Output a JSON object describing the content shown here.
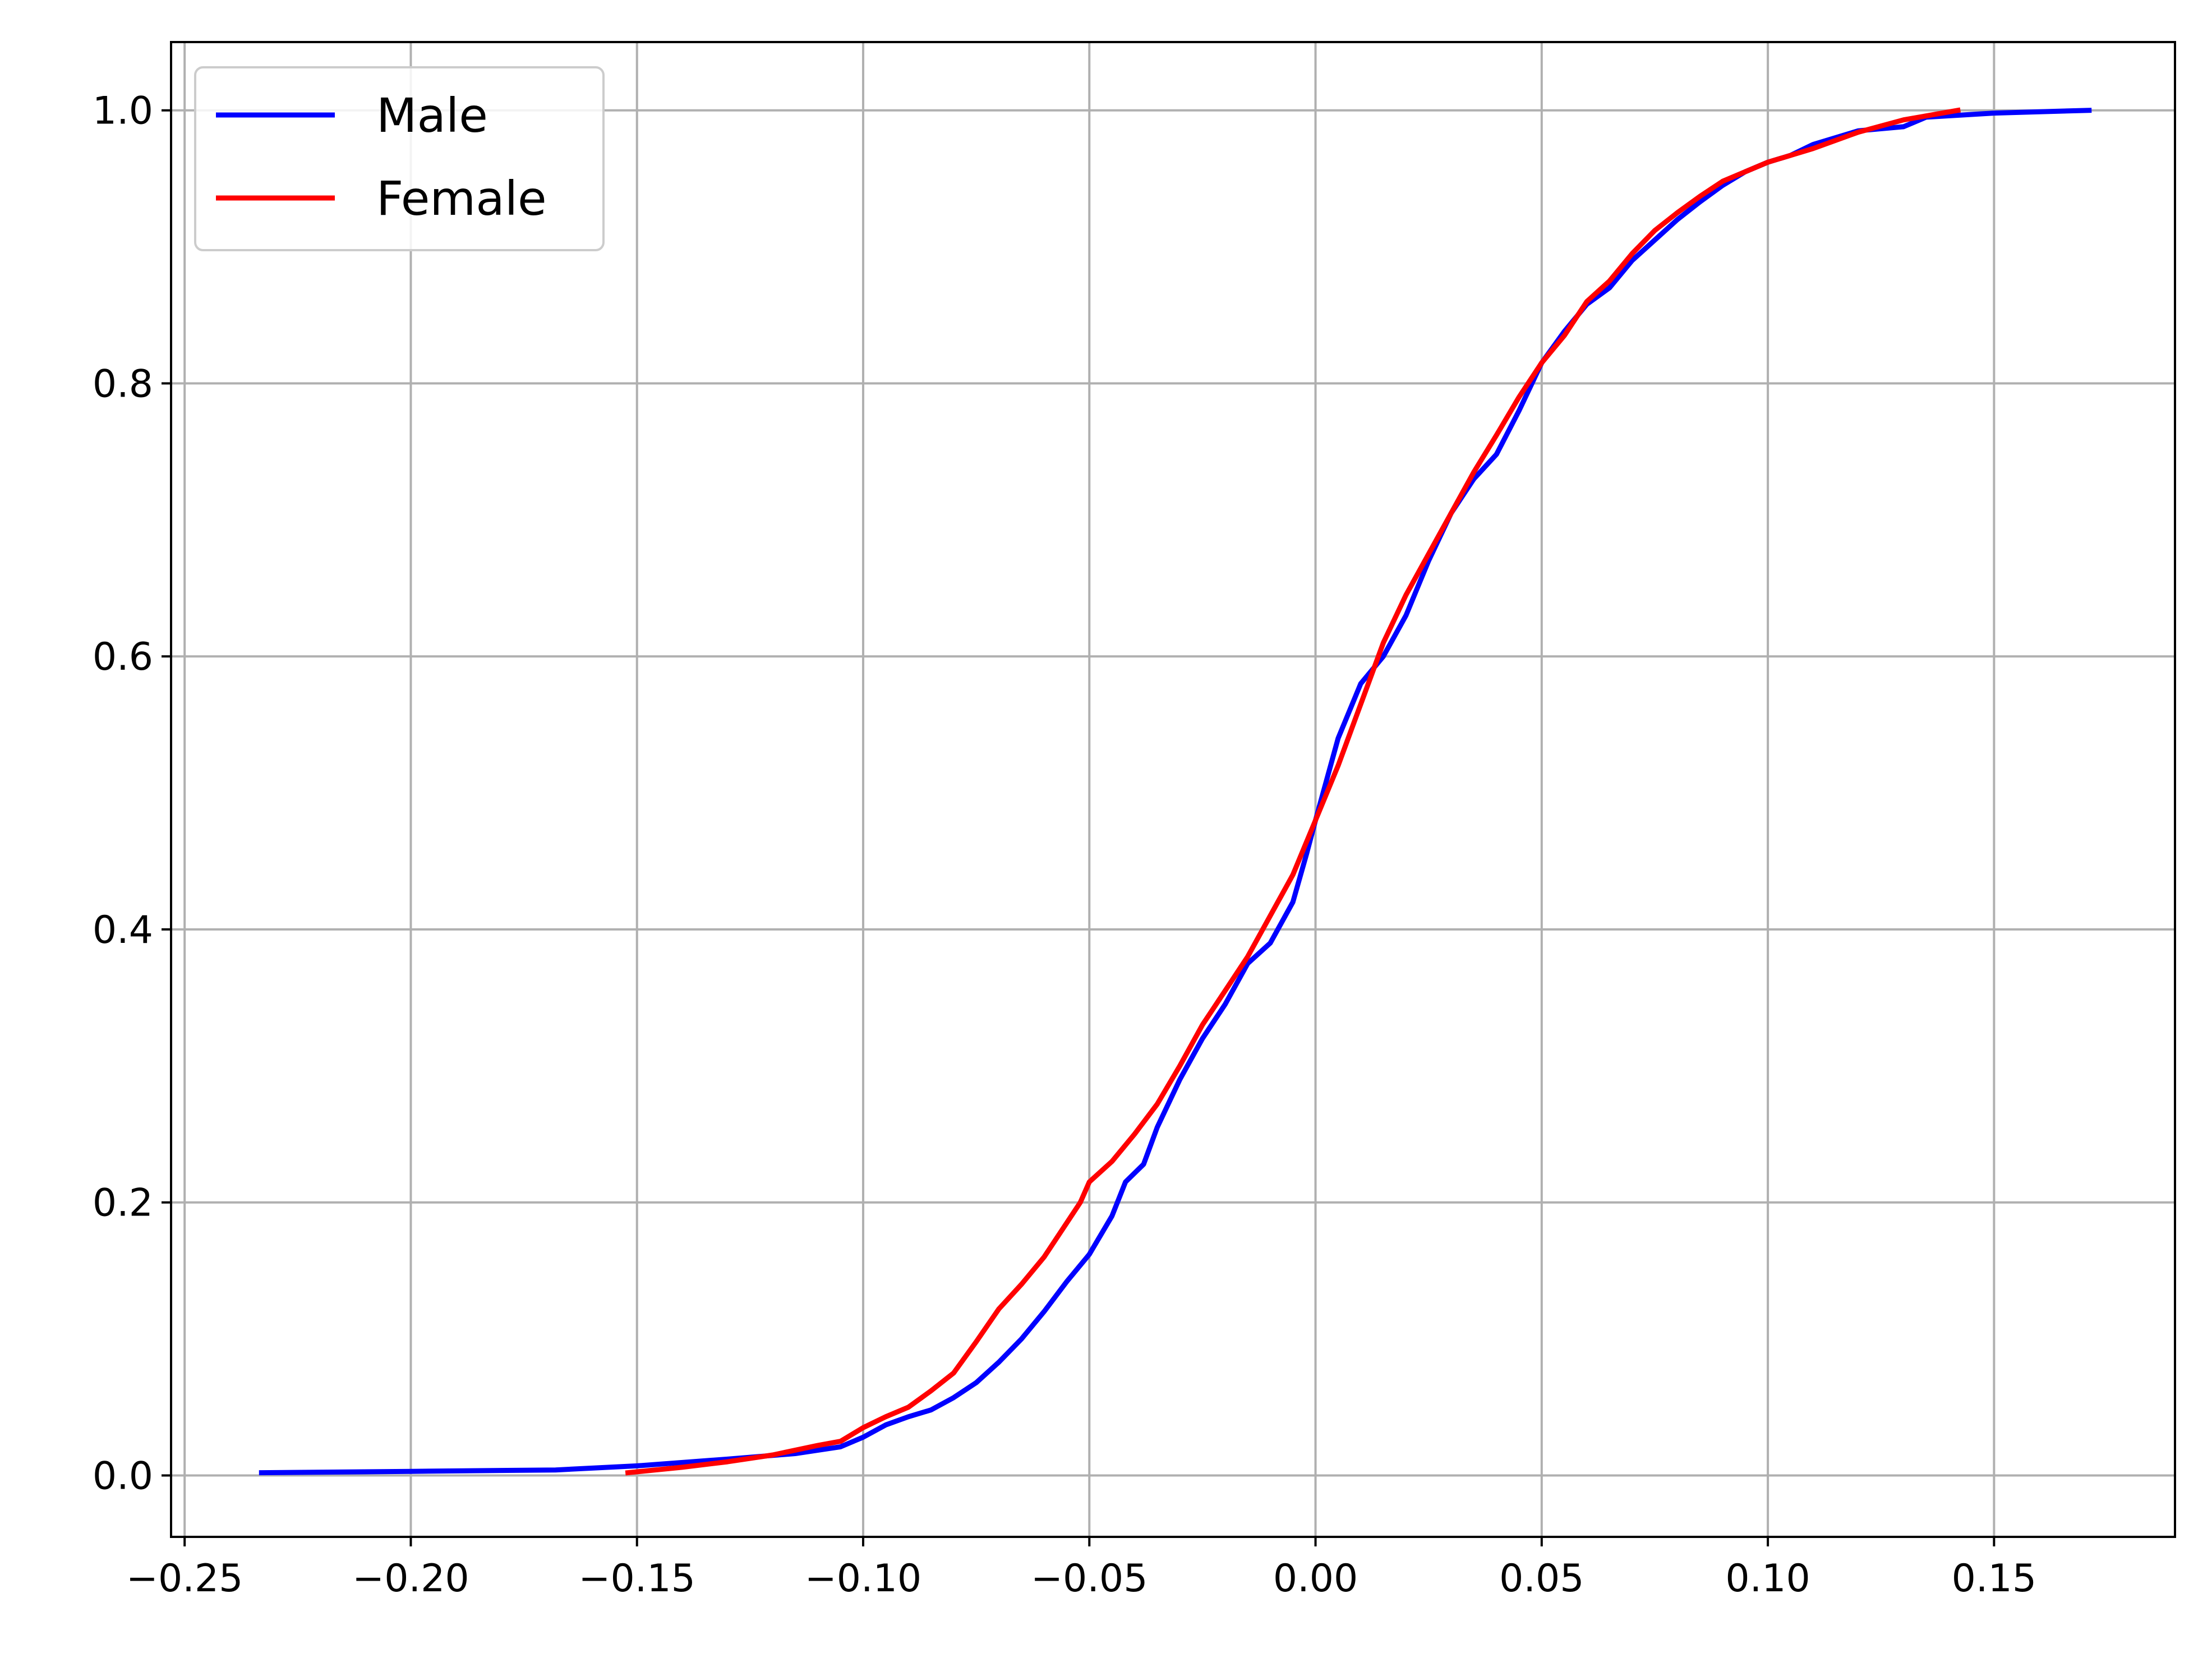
{
  "chart_data": {
    "type": "line",
    "title": "",
    "xlabel": "",
    "ylabel": "",
    "xlim": [
      -0.253,
      0.19
    ],
    "ylim": [
      -0.045,
      1.05
    ],
    "grid": true,
    "legend_position": "top-left",
    "x_ticks": [
      "−0.25",
      "−0.20",
      "−0.15",
      "−0.10",
      "−0.05",
      "0.00",
      "0.05",
      "0.10",
      "0.15"
    ],
    "x_tick_values": [
      -0.25,
      -0.2,
      -0.15,
      -0.1,
      -0.05,
      0.0,
      0.05,
      0.1,
      0.15
    ],
    "y_ticks": [
      "0.0",
      "0.2",
      "0.4",
      "0.6",
      "0.8",
      "1.0"
    ],
    "y_tick_values": [
      0.0,
      0.2,
      0.4,
      0.6,
      0.8,
      1.0
    ],
    "series": [
      {
        "name": "Male",
        "color": "#0000ff",
        "points": [
          [
            -0.233,
            0.002
          ],
          [
            -0.2,
            0.003
          ],
          [
            -0.168,
            0.004
          ],
          [
            -0.15,
            0.007
          ],
          [
            -0.13,
            0.012
          ],
          [
            -0.115,
            0.016
          ],
          [
            -0.105,
            0.021
          ],
          [
            -0.1,
            0.028
          ],
          [
            -0.095,
            0.037
          ],
          [
            -0.09,
            0.043
          ],
          [
            -0.085,
            0.048
          ],
          [
            -0.08,
            0.057
          ],
          [
            -0.075,
            0.068
          ],
          [
            -0.07,
            0.083
          ],
          [
            -0.065,
            0.1
          ],
          [
            -0.06,
            0.12
          ],
          [
            -0.055,
            0.142
          ],
          [
            -0.05,
            0.162
          ],
          [
            -0.045,
            0.19
          ],
          [
            -0.042,
            0.215
          ],
          [
            -0.038,
            0.228
          ],
          [
            -0.035,
            0.255
          ],
          [
            -0.03,
            0.29
          ],
          [
            -0.025,
            0.32
          ],
          [
            -0.02,
            0.345
          ],
          [
            -0.015,
            0.375
          ],
          [
            -0.01,
            0.39
          ],
          [
            -0.005,
            0.42
          ],
          [
            -0.002,
            0.455
          ],
          [
            0.0,
            0.48
          ],
          [
            0.005,
            0.54
          ],
          [
            0.01,
            0.58
          ],
          [
            0.015,
            0.6
          ],
          [
            0.02,
            0.63
          ],
          [
            0.025,
            0.67
          ],
          [
            0.03,
            0.705
          ],
          [
            0.035,
            0.73
          ],
          [
            0.04,
            0.748
          ],
          [
            0.045,
            0.78
          ],
          [
            0.05,
            0.815
          ],
          [
            0.055,
            0.838
          ],
          [
            0.06,
            0.858
          ],
          [
            0.065,
            0.87
          ],
          [
            0.07,
            0.89
          ],
          [
            0.075,
            0.905
          ],
          [
            0.08,
            0.92
          ],
          [
            0.085,
            0.933
          ],
          [
            0.09,
            0.945
          ],
          [
            0.095,
            0.955
          ],
          [
            0.1,
            0.962
          ],
          [
            0.105,
            0.967
          ],
          [
            0.11,
            0.975
          ],
          [
            0.12,
            0.985
          ],
          [
            0.13,
            0.988
          ],
          [
            0.135,
            0.995
          ],
          [
            0.15,
            0.998
          ],
          [
            0.171,
            1.0
          ]
        ]
      },
      {
        "name": "Female",
        "color": "#ff0000",
        "points": [
          [
            -0.152,
            0.002
          ],
          [
            -0.14,
            0.006
          ],
          [
            -0.13,
            0.01
          ],
          [
            -0.12,
            0.015
          ],
          [
            -0.11,
            0.022
          ],
          [
            -0.105,
            0.025
          ],
          [
            -0.1,
            0.035
          ],
          [
            -0.095,
            0.043
          ],
          [
            -0.09,
            0.05
          ],
          [
            -0.085,
            0.062
          ],
          [
            -0.08,
            0.075
          ],
          [
            -0.075,
            0.098
          ],
          [
            -0.07,
            0.122
          ],
          [
            -0.065,
            0.14
          ],
          [
            -0.06,
            0.16
          ],
          [
            -0.055,
            0.185
          ],
          [
            -0.052,
            0.2
          ],
          [
            -0.05,
            0.215
          ],
          [
            -0.045,
            0.23
          ],
          [
            -0.04,
            0.25
          ],
          [
            -0.035,
            0.272
          ],
          [
            -0.03,
            0.3
          ],
          [
            -0.025,
            0.33
          ],
          [
            -0.02,
            0.355
          ],
          [
            -0.015,
            0.38
          ],
          [
            -0.01,
            0.41
          ],
          [
            -0.005,
            0.44
          ],
          [
            0.0,
            0.48
          ],
          [
            0.005,
            0.52
          ],
          [
            0.01,
            0.565
          ],
          [
            0.015,
            0.61
          ],
          [
            0.02,
            0.645
          ],
          [
            0.025,
            0.675
          ],
          [
            0.03,
            0.705
          ],
          [
            0.035,
            0.735
          ],
          [
            0.04,
            0.762
          ],
          [
            0.045,
            0.79
          ],
          [
            0.05,
            0.815
          ],
          [
            0.055,
            0.835
          ],
          [
            0.06,
            0.86
          ],
          [
            0.065,
            0.875
          ],
          [
            0.07,
            0.895
          ],
          [
            0.075,
            0.912
          ],
          [
            0.08,
            0.925
          ],
          [
            0.085,
            0.937
          ],
          [
            0.09,
            0.948
          ],
          [
            0.095,
            0.955
          ],
          [
            0.1,
            0.962
          ],
          [
            0.11,
            0.972
          ],
          [
            0.12,
            0.984
          ],
          [
            0.13,
            0.993
          ],
          [
            0.142,
            1.0
          ]
        ]
      }
    ]
  }
}
